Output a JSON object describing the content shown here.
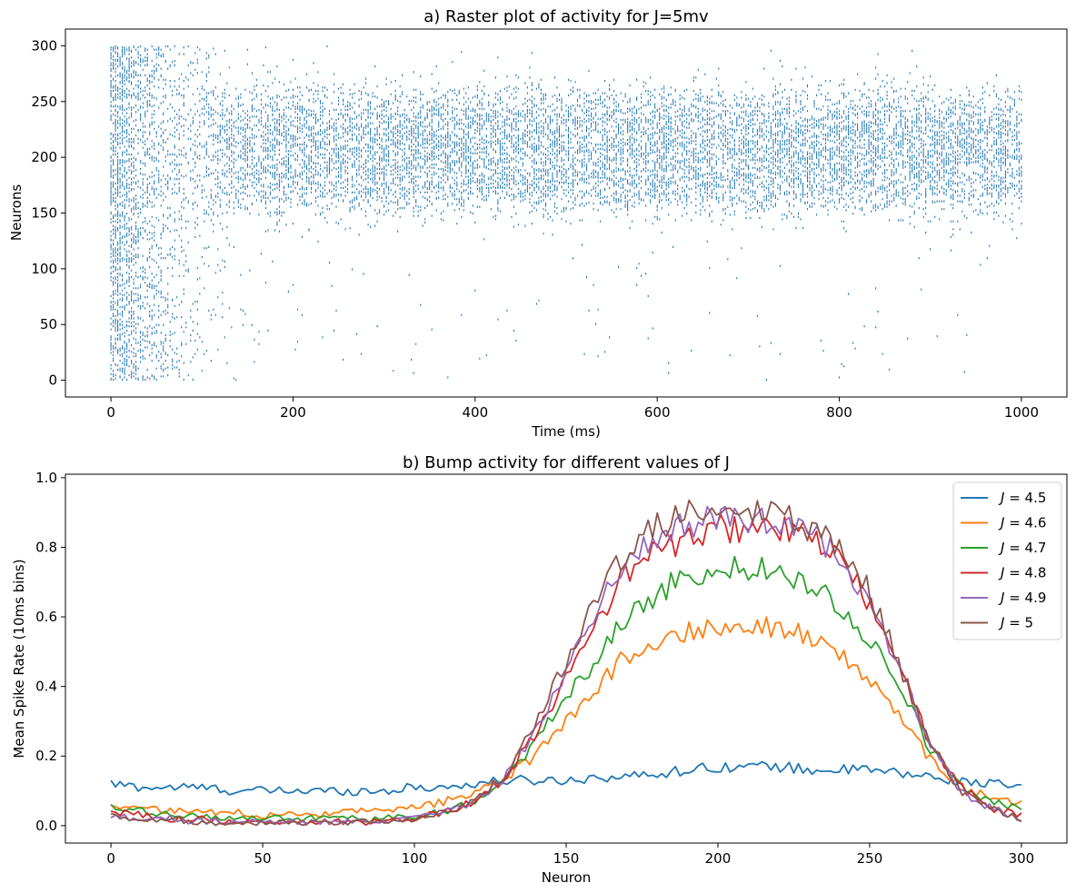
{
  "chart_data": [
    {
      "type": "scatter",
      "title": "a) Raster plot of activity for J=5mv",
      "xlabel": "Time (ms)",
      "ylabel": "Neurons",
      "xlim": [
        -50,
        1050
      ],
      "ylim": [
        -15,
        315
      ],
      "xticks": [
        0,
        200,
        400,
        600,
        800,
        1000
      ],
      "yticks": [
        0,
        50,
        100,
        150,
        200,
        250,
        300
      ],
      "marker_color": "#1f77b4",
      "grid": false,
      "legend": "none",
      "spike_summary": {
        "time_range": [
          0,
          1000
        ],
        "neuron_range": [
          0,
          300
        ],
        "bump_center_neuron": 205,
        "bump_onset_ms": 110
      }
    },
    {
      "type": "line",
      "title": "b) Bump activity for different values of J",
      "xlabel": "Neuron",
      "ylabel": "Mean Spike Rate (10ms bins)",
      "xlim": [
        -15,
        315
      ],
      "ylim": [
        -0.05,
        1.01
      ],
      "xticks": [
        0,
        50,
        100,
        150,
        200,
        250,
        300
      ],
      "yticks": [
        0.0,
        0.2,
        0.4,
        0.6,
        0.8,
        1.0
      ],
      "grid": false,
      "legend": "top-right",
      "x": [
        0,
        10,
        20,
        30,
        40,
        50,
        60,
        70,
        80,
        90,
        100,
        110,
        120,
        130,
        140,
        150,
        160,
        170,
        180,
        190,
        200,
        210,
        220,
        230,
        240,
        250,
        260,
        270,
        280,
        290,
        300
      ],
      "series": [
        {
          "name": "J = 4.5",
          "color": "#1f77b4",
          "values": [
            0.12,
            0.11,
            0.11,
            0.11,
            0.1,
            0.1,
            0.1,
            0.1,
            0.1,
            0.1,
            0.11,
            0.11,
            0.12,
            0.13,
            0.13,
            0.13,
            0.14,
            0.14,
            0.15,
            0.16,
            0.17,
            0.17,
            0.17,
            0.16,
            0.16,
            0.16,
            0.15,
            0.14,
            0.13,
            0.12,
            0.11
          ]
        },
        {
          "name": "J = 4.6",
          "color": "#ff7f0e",
          "values": [
            0.06,
            0.05,
            0.04,
            0.04,
            0.04,
            0.03,
            0.03,
            0.03,
            0.04,
            0.04,
            0.05,
            0.07,
            0.09,
            0.14,
            0.2,
            0.3,
            0.4,
            0.49,
            0.53,
            0.56,
            0.57,
            0.58,
            0.57,
            0.54,
            0.49,
            0.42,
            0.32,
            0.19,
            0.11,
            0.08,
            0.06
          ]
        },
        {
          "name": "J = 4.7",
          "color": "#2ca02c",
          "values": [
            0.05,
            0.04,
            0.03,
            0.03,
            0.02,
            0.02,
            0.02,
            0.02,
            0.02,
            0.02,
            0.03,
            0.04,
            0.07,
            0.14,
            0.24,
            0.37,
            0.48,
            0.6,
            0.67,
            0.72,
            0.73,
            0.74,
            0.73,
            0.7,
            0.63,
            0.53,
            0.4,
            0.22,
            0.11,
            0.07,
            0.05
          ]
        },
        {
          "name": "J = 4.8",
          "color": "#d62728",
          "values": [
            0.04,
            0.03,
            0.02,
            0.02,
            0.01,
            0.01,
            0.01,
            0.01,
            0.01,
            0.01,
            0.02,
            0.04,
            0.07,
            0.14,
            0.27,
            0.42,
            0.58,
            0.73,
            0.79,
            0.82,
            0.85,
            0.86,
            0.85,
            0.83,
            0.77,
            0.64,
            0.44,
            0.24,
            0.11,
            0.05,
            0.03
          ]
        },
        {
          "name": "J = 4.9",
          "color": "#9467bd",
          "values": [
            0.03,
            0.02,
            0.02,
            0.01,
            0.01,
            0.01,
            0.01,
            0.01,
            0.01,
            0.01,
            0.02,
            0.04,
            0.07,
            0.14,
            0.28,
            0.45,
            0.62,
            0.77,
            0.83,
            0.87,
            0.88,
            0.88,
            0.87,
            0.84,
            0.78,
            0.65,
            0.45,
            0.23,
            0.1,
            0.05,
            0.02
          ]
        },
        {
          "name": "J = 5",
          "color": "#8c564b",
          "values": [
            0.03,
            0.02,
            0.02,
            0.01,
            0.01,
            0.01,
            0.01,
            0.01,
            0.01,
            0.01,
            0.02,
            0.04,
            0.07,
            0.15,
            0.29,
            0.47,
            0.65,
            0.79,
            0.86,
            0.89,
            0.9,
            0.9,
            0.89,
            0.86,
            0.8,
            0.67,
            0.46,
            0.23,
            0.1,
            0.05,
            0.02
          ]
        }
      ]
    }
  ]
}
